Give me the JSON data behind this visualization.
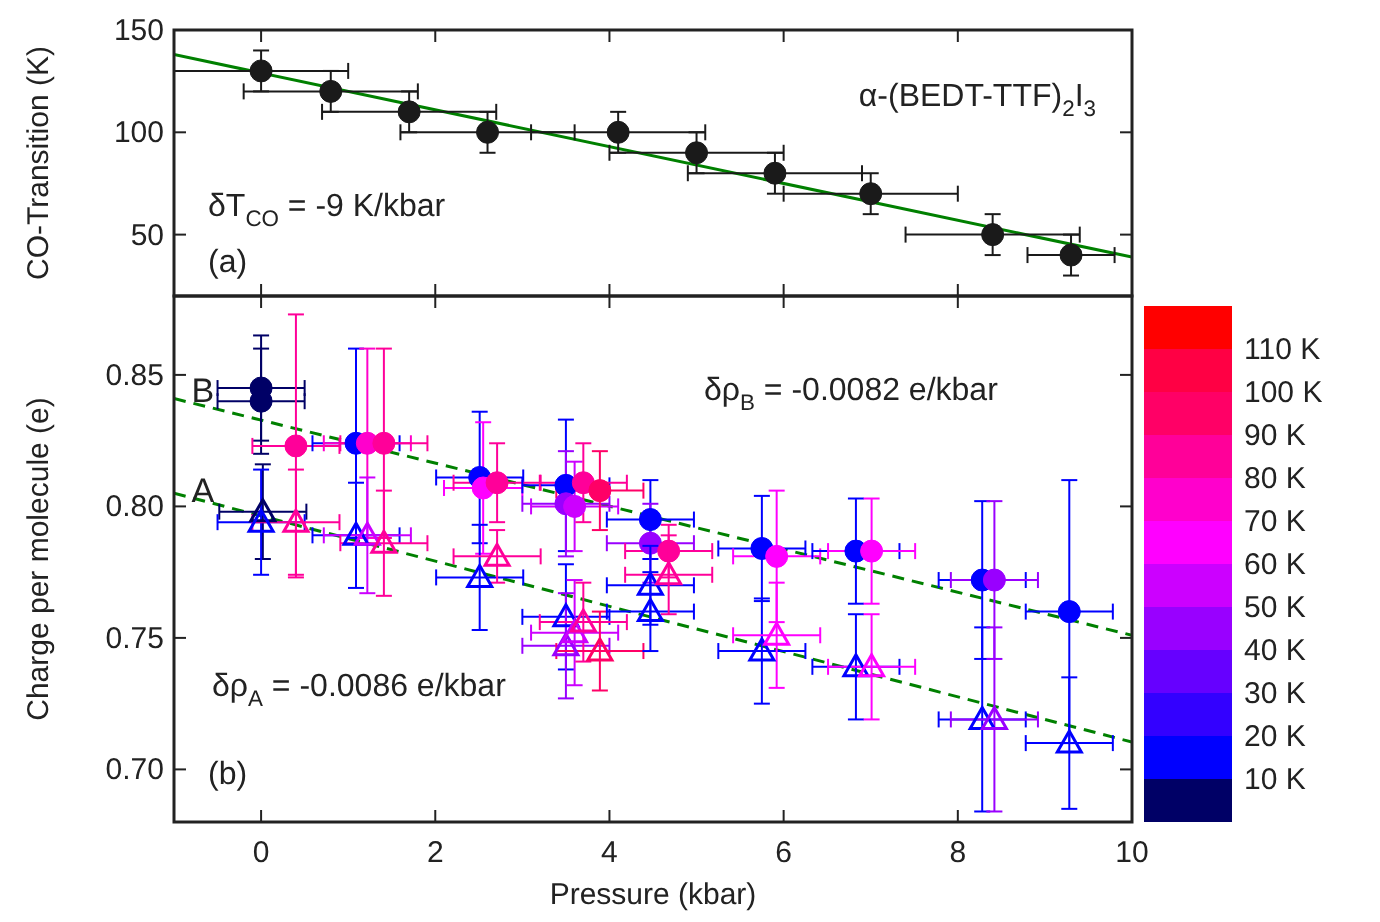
{
  "chart_data": [
    {
      "type": "scatter",
      "ylabel": "CO-Transition (K)",
      "xlim": [
        -1,
        10
      ],
      "xticks": [
        0,
        2,
        4,
        6,
        8,
        10
      ],
      "ylim": [
        20,
        150
      ],
      "yticks": [
        50,
        100,
        150
      ],
      "tick_labels": "y",
      "annotations": [
        "α-(BEDT-TTF)$_{2}$I$_{3}$",
        "δT$_{CO}$ = -9 K/kbar",
        "(a)"
      ],
      "series": [
        {
          "type": "scatter",
          "color": "#1a1a1a",
          "marker": "circle",
          "x": [
            0,
            0.8,
            1.7,
            2.6,
            4.1,
            5.0,
            5.9,
            7.0,
            8.4,
            9.3
          ],
          "values": [
            130,
            120,
            110,
            100,
            100,
            90,
            80,
            70,
            50,
            40
          ],
          "errors": [
            10,
            10,
            10,
            10,
            10,
            10,
            10,
            10,
            10,
            10
          ],
          "xerrors": [
            1,
            1,
            1,
            1,
            1,
            1,
            1,
            1,
            1,
            0.5
          ]
        },
        {
          "type": "line",
          "color": "#008000",
          "marker": "none",
          "line_style": "solid",
          "x": [
            -1,
            10
          ],
          "values": [
            138,
            39
          ]
        }
      ]
    },
    {
      "type": "scatter",
      "xlabel": "Pressure (kbar)",
      "ylabel": "Charge per molecule (e)",
      "xlim": [
        -1,
        10
      ],
      "xticks": [
        0,
        2,
        4,
        6,
        8,
        10
      ],
      "ylim": [
        0.68,
        0.88
      ],
      "yticks": [
        {
          "value": 0.7,
          "label": "0.70"
        },
        {
          "value": 0.75,
          "label": "0.75"
        },
        {
          "value": 0.8,
          "label": "0.80"
        },
        {
          "value": 0.85,
          "label": "0.85"
        }
      ],
      "clim": [
        0,
        120
      ],
      "cticks": [
        {
          "value": 10,
          "label": "10 K"
        },
        {
          "value": 20,
          "label": "20 K"
        },
        {
          "value": 30,
          "label": "30 K"
        },
        {
          "value": 40,
          "label": "40 K"
        },
        {
          "value": 50,
          "label": "50 K"
        },
        {
          "value": 60,
          "label": "60 K"
        },
        {
          "value": 70,
          "label": "70 K"
        },
        {
          "value": 80,
          "label": "80 K"
        },
        {
          "value": 90,
          "label": "90 K"
        },
        {
          "value": 100,
          "label": "100 K"
        },
        {
          "value": 110,
          "label": "110 K"
        }
      ],
      "annotations": [
        {
          "text": "B",
          "x": -0.8,
          "y": 0.842
        },
        {
          "text": "A",
          "x": -0.8,
          "y": 0.804
        },
        "δρ$_{B}$ = -0.0082 e/kbar",
        "δρ$_{A}$ = -0.0086 e/kbar",
        "(b)"
      ],
      "series": [
        {
          "type": "scatter",
          "marker": "circle",
          "colors": [
            "#000066",
            "#000066",
            "#ff0099",
            "#0000ff",
            "#ff00cc",
            "#ff0099",
            "#0000ff",
            "#ff00ff",
            "#ff0099",
            "#0000ff",
            "#9900ff",
            "#cc00ff",
            "#ff0099",
            "#ff0066",
            "#0000ff",
            "#9900ff",
            "#ff0099",
            "#0000ff",
            "#ff00ff",
            "#0000ff",
            "#ff00ff",
            "#0000ff",
            "#9900ff",
            "#0000ff"
          ],
          "x": [
            0,
            0,
            0.4,
            1.09,
            1.22,
            1.41,
            2.51,
            2.55,
            2.71,
            3.5,
            3.5,
            3.6,
            3.7,
            3.89,
            4.47,
            4.47,
            4.68,
            5.75,
            5.92,
            6.83,
            7.01,
            8.28,
            8.42,
            9.28
          ],
          "values": [
            0.845,
            0.84,
            0.823,
            0.824,
            0.824,
            0.824,
            0.811,
            0.807,
            0.809,
            0.808,
            0.801,
            0.8,
            0.809,
            0.806,
            0.795,
            0.786,
            0.783,
            0.784,
            0.781,
            0.783,
            0.783,
            0.772,
            0.772,
            0.76
          ],
          "cvalues": [
            5,
            5,
            85,
            15,
            75,
            85,
            15,
            65,
            85,
            15,
            45,
            55,
            85,
            95,
            15,
            45,
            85,
            15,
            65,
            15,
            65,
            15,
            45,
            15
          ],
          "errors": [
            0.02,
            0.02,
            0.05,
            0.036,
            0.036,
            0.036,
            0.025,
            0.025,
            0.015,
            0.025,
            0.02,
            0.017,
            0.015,
            0.015,
            0.015,
            0.015,
            0.01,
            0.02,
            0.025,
            0.02,
            0.02,
            0.03,
            0.03,
            0.05
          ],
          "xerrors": [
            0.5,
            0.5,
            0.5,
            0.5,
            0.5,
            0.5,
            0.5,
            0.45,
            0.5,
            0.5,
            0.5,
            0.5,
            0.5,
            0.5,
            0.5,
            0.5,
            0.5,
            0.5,
            0.5,
            0.5,
            0.5,
            0.5,
            0.5,
            0.5
          ]
        },
        {
          "type": "scatter",
          "marker": "triangle",
          "colors": [
            "#000066",
            "#0000ff",
            "#ff0099",
            "#0000ff",
            "#cc00ff",
            "#ff0099",
            "#0000ff",
            "#ff0099",
            "#0000ff",
            "#9900ff",
            "#cc00ff",
            "#ff0099",
            "#ff0066",
            "#0000ff",
            "#0000ff",
            "#ff0099",
            "#0000ff",
            "#ff00ff",
            "#0000ff",
            "#ff00ff",
            "#0000ff",
            "#9900ff",
            "#0000ff"
          ],
          "x": [
            0.02,
            0,
            0.4,
            1.09,
            1.22,
            1.41,
            2.51,
            2.71,
            3.5,
            3.5,
            3.6,
            3.7,
            3.89,
            4.47,
            4.47,
            4.68,
            5.75,
            5.92,
            6.83,
            7.01,
            8.28,
            8.42,
            9.28
          ],
          "values": [
            0.798,
            0.794,
            0.794,
            0.789,
            0.789,
            0.786,
            0.773,
            0.781,
            0.758,
            0.747,
            0.752,
            0.756,
            0.745,
            0.77,
            0.76,
            0.774,
            0.745,
            0.751,
            0.739,
            0.739,
            0.719,
            0.719,
            0.71
          ],
          "cvalues": [
            5,
            15,
            85,
            15,
            55,
            85,
            15,
            85,
            15,
            45,
            55,
            85,
            95,
            15,
            15,
            85,
            15,
            65,
            15,
            65,
            15,
            45,
            15
          ],
          "errors": [
            0.018,
            0.02,
            0.02,
            0.02,
            0.022,
            0.02,
            0.02,
            0.01,
            0.02,
            0.02,
            0.02,
            0.015,
            0.015,
            0.015,
            0.015,
            0.015,
            0.02,
            0.02,
            0.02,
            0.02,
            0.035,
            0.035,
            0.025
          ],
          "xerrors": [
            0.5,
            0.5,
            0.5,
            0.5,
            0.5,
            0.5,
            0.5,
            0.5,
            0.5,
            0.5,
            0.5,
            0.5,
            0.5,
            0.5,
            0.5,
            0.5,
            0.5,
            0.5,
            0.5,
            0.5,
            0.5,
            0.5,
            0.5
          ]
        },
        {
          "type": "line",
          "color": "#008000",
          "marker": "none",
          "line_style": "dashed",
          "x": [
            -1,
            10
          ],
          "values": [
            0.841,
            0.751
          ]
        },
        {
          "type": "line",
          "color": "#008000",
          "marker": "none",
          "line_style": "dashed",
          "x": [
            -1,
            10
          ],
          "values": [
            0.805,
            0.7104
          ]
        }
      ]
    }
  ]
}
